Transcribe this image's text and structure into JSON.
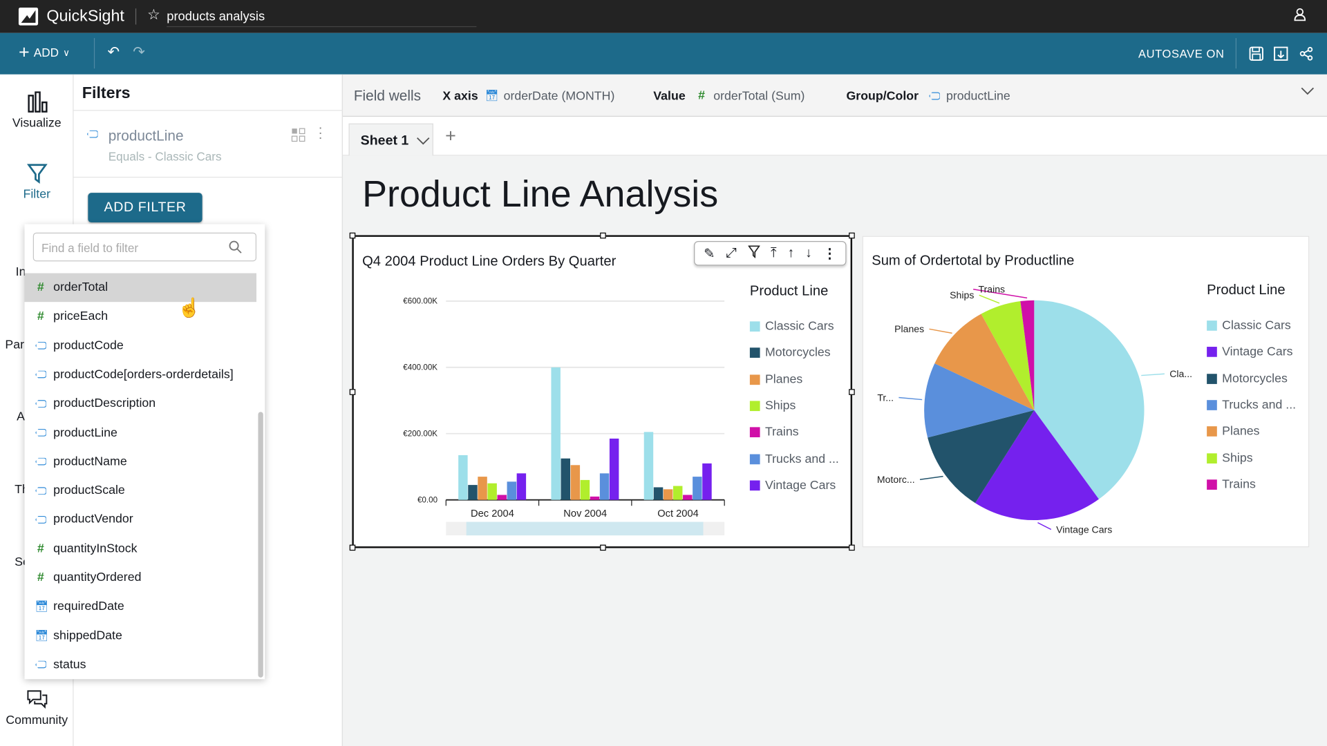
{
  "topbar": {
    "brand": "QuickSight",
    "analysis_title": "products analysis"
  },
  "toolbar": {
    "add_label": "ADD",
    "autosave": "AUTOSAVE ON"
  },
  "rail": {
    "items": [
      "Visualize",
      "Filter",
      "Insights",
      "Parameters",
      "Actions",
      "Themes",
      "Settings",
      "Community"
    ]
  },
  "filters": {
    "title": "Filters",
    "card": {
      "field": "productLine",
      "condition": "Equals - Classic Cars"
    },
    "add_filter": "ADD FILTER",
    "search_placeholder": "Find a field to filter",
    "fields": [
      {
        "name": "orderTotal",
        "type": "number"
      },
      {
        "name": "priceEach",
        "type": "number"
      },
      {
        "name": "productCode",
        "type": "dimension"
      },
      {
        "name": "productCode[orders-orderdetails]",
        "type": "dimension"
      },
      {
        "name": "productDescription",
        "type": "dimension"
      },
      {
        "name": "productLine",
        "type": "dimension"
      },
      {
        "name": "productName",
        "type": "dimension"
      },
      {
        "name": "productScale",
        "type": "dimension"
      },
      {
        "name": "productVendor",
        "type": "dimension"
      },
      {
        "name": "quantityInStock",
        "type": "number"
      },
      {
        "name": "quantityOrdered",
        "type": "number"
      },
      {
        "name": "requiredDate",
        "type": "date"
      },
      {
        "name": "shippedDate",
        "type": "date"
      },
      {
        "name": "status",
        "type": "dimension"
      }
    ]
  },
  "fieldwells": {
    "label": "Field wells",
    "xaxis_label": "X axis",
    "xaxis_value": "orderDate (MONTH)",
    "value_label": "Value",
    "value_value": "orderTotal (Sum)",
    "group_label": "Group/Color",
    "group_value": "productLine"
  },
  "sheet": {
    "tab": "Sheet 1",
    "title": "Product Line Analysis"
  },
  "colors": {
    "Classic Cars": "#9ddfea",
    "Motorcycles": "#22536b",
    "Vintage Cars": "#7521ee",
    "Planes": "#e8974a",
    "Ships": "#b1ee2d",
    "Trains": "#d010a8",
    "Trucks and Buses": "#5a8fdc"
  },
  "chart_data": [
    {
      "type": "bar",
      "title": "Q4 2004 Product Line Orders By Quarter",
      "legend_title": "Product Line",
      "legend_placement": "right",
      "categories": [
        "Dec 2004",
        "Nov 2004",
        "Oct 2004"
      ],
      "ylim": [
        0,
        600000
      ],
      "yticks": [
        "€0.00",
        "€200.00K",
        "€400.00K",
        "€600.00K"
      ],
      "ytick_values": [
        0,
        200000,
        400000,
        600000
      ],
      "series": [
        {
          "name": "Classic Cars",
          "legend": "Classic Cars",
          "values": [
            135000,
            400000,
            205000
          ]
        },
        {
          "name": "Motorcycles",
          "legend": "Motorcycles",
          "values": [
            45000,
            125000,
            38000
          ]
        },
        {
          "name": "Planes",
          "legend": "Planes",
          "values": [
            70000,
            105000,
            32000
          ]
        },
        {
          "name": "Ships",
          "legend": "Ships",
          "values": [
            50000,
            60000,
            42000
          ]
        },
        {
          "name": "Trains",
          "legend": "Trains",
          "values": [
            15000,
            10000,
            15000
          ]
        },
        {
          "name": "Trucks and Buses",
          "legend": "Trucks and ...",
          "values": [
            55000,
            80000,
            70000
          ]
        },
        {
          "name": "Vintage Cars",
          "legend": "Vintage Cars",
          "values": [
            80000,
            185000,
            110000
          ]
        }
      ]
    },
    {
      "type": "pie",
      "title": "Sum of Ordertotal by Productline",
      "legend_title": "Product Line",
      "legend_placement": "right",
      "slices": [
        {
          "name": "Classic Cars",
          "legend": "Classic Cars",
          "label": "Cla...",
          "value": 40
        },
        {
          "name": "Vintage Cars",
          "legend": "Vintage Cars",
          "label": "Vintage Cars",
          "value": 19
        },
        {
          "name": "Motorcycles",
          "legend": "Motorcycles",
          "label": "Motorc...",
          "value": 12
        },
        {
          "name": "Trucks and Buses",
          "legend": "Trucks and ...",
          "label": "Tr...",
          "value": 11
        },
        {
          "name": "Planes",
          "legend": "Planes",
          "label": "Planes",
          "value": 10
        },
        {
          "name": "Ships",
          "legend": "Ships",
          "label": "Ships",
          "value": 6
        },
        {
          "name": "Trains",
          "legend": "Trains",
          "label": "Trains",
          "value": 2
        }
      ]
    }
  ]
}
